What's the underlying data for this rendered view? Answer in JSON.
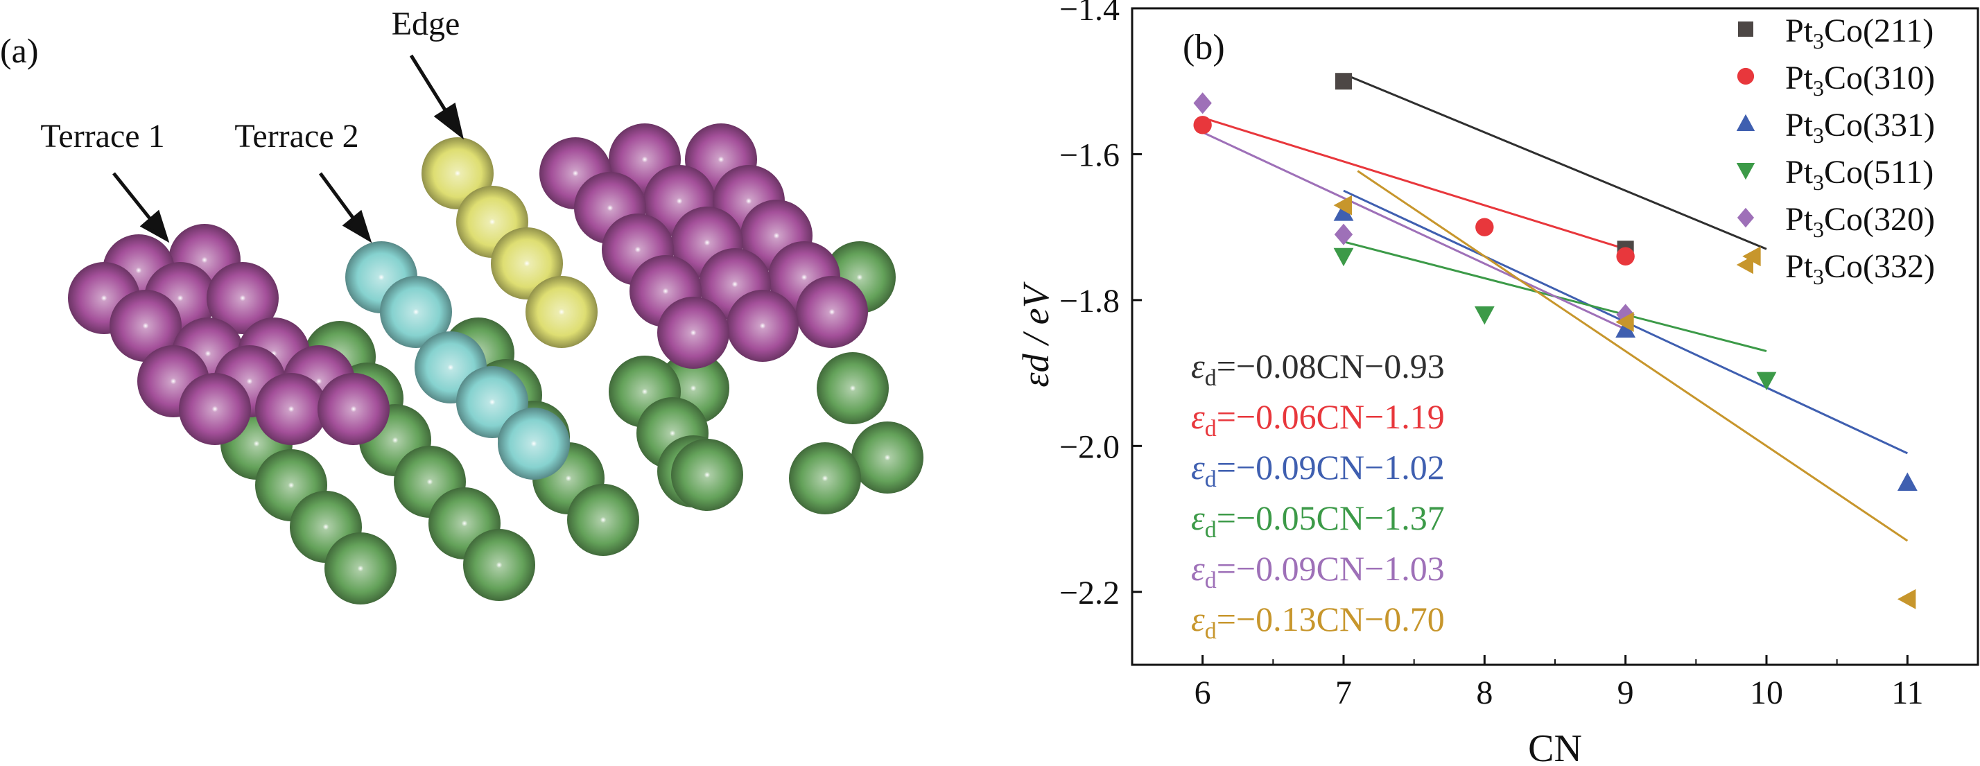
{
  "panel_a": {
    "label": "(a)",
    "annotations": {
      "edge": "Edge",
      "terrace1": "Terrace 1",
      "terrace2": "Terrace 2"
    },
    "colors": {
      "pt": "#a4509a",
      "edge": "#dede72",
      "terrace2": "#86d2cf",
      "sub": "#64a25a"
    }
  },
  "chart_data": {
    "type": "scatter",
    "panel_label": "(b)",
    "xlabel": "CN",
    "ylabel": "εd / eV",
    "xlim": [
      5.5,
      11.5
    ],
    "ylim": [
      -2.3,
      -1.4
    ],
    "xticks": [
      6,
      7,
      8,
      9,
      10,
      11
    ],
    "yticks": [
      -1.4,
      -1.6,
      -1.8,
      -2.0,
      -2.2
    ],
    "xtick_labels": [
      "6",
      "7",
      "8",
      "9",
      "10",
      "11"
    ],
    "ytick_labels": [
      "−1.4",
      "−1.6",
      "−1.8",
      "−2.0",
      "−2.2"
    ],
    "legend_position": "top-right",
    "series": [
      {
        "name": "Pt3Co(211)",
        "marker": "square",
        "color": "#4d4745",
        "points": [
          [
            7,
            -1.5
          ],
          [
            9,
            -1.73
          ]
        ]
      },
      {
        "name": "Pt3Co(310)",
        "marker": "circle",
        "color": "#e8373c",
        "points": [
          [
            6,
            -1.56
          ],
          [
            8,
            -1.7
          ],
          [
            9,
            -1.74
          ]
        ]
      },
      {
        "name": "Pt3Co(331)",
        "marker": "triangle-up",
        "color": "#3f5fb0",
        "points": [
          [
            7,
            -1.68
          ],
          [
            9,
            -1.84
          ],
          [
            11,
            -2.05
          ]
        ]
      },
      {
        "name": "Pt3Co(511)",
        "marker": "triangle-down",
        "color": "#3c9a48",
        "points": [
          [
            7,
            -1.74
          ],
          [
            8,
            -1.82
          ],
          [
            10,
            -1.91
          ]
        ]
      },
      {
        "name": "Pt3Co(320)",
        "marker": "diamond",
        "color": "#9e70b8",
        "points": [
          [
            6,
            -1.53
          ],
          [
            7,
            -1.71
          ],
          [
            9,
            -1.82
          ]
        ]
      },
      {
        "name": "Pt3Co(332)",
        "marker": "triangle-left",
        "color": "#c7962c",
        "points": [
          [
            7,
            -1.67
          ],
          [
            9,
            -1.83
          ],
          [
            9.9,
            -1.74
          ],
          [
            11,
            -2.21
          ]
        ]
      }
    ],
    "fits": [
      {
        "color": "#2f2f2f",
        "slope": -0.08,
        "intercept": -0.93,
        "x_range": [
          7,
          10
        ],
        "equation": "=−0.08CN−0.93"
      },
      {
        "color": "#e8373c",
        "slope": -0.06,
        "intercept": -1.19,
        "x_range": [
          6,
          9
        ],
        "equation": "=−0.06CN−1.19"
      },
      {
        "color": "#3f5fb0",
        "slope": -0.09,
        "intercept": -1.02,
        "x_range": [
          7,
          11
        ],
        "equation": "=−0.09CN−1.02"
      },
      {
        "color": "#3c9a48",
        "slope": -0.05,
        "intercept": -1.37,
        "x_range": [
          7,
          10
        ],
        "equation": "=−0.05CN−1.37"
      },
      {
        "color": "#9e70b8",
        "slope": -0.09,
        "intercept": -1.03,
        "x_range": [
          6,
          9
        ],
        "equation": "=−0.09CN−1.03"
      },
      {
        "color": "#c7962c",
        "slope": -0.13,
        "intercept": -0.7,
        "x_range": [
          7.1,
          11
        ],
        "equation": "=−0.13CN−0.70"
      }
    ]
  }
}
